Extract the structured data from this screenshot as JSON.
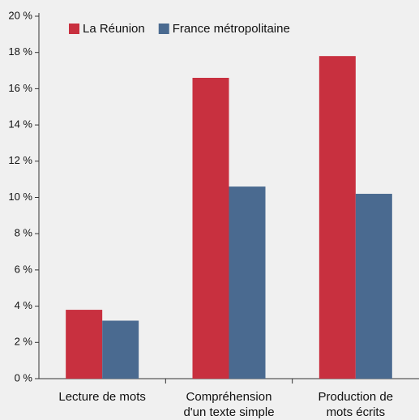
{
  "chart_data": {
    "type": "bar",
    "categories": [
      "Lecture de mots",
      "Compréhension\nd'un texte simple",
      "Production de\nmots écrits"
    ],
    "series": [
      {
        "name": "La Réunion",
        "color": "#c8303f",
        "values": [
          3.8,
          16.6,
          17.8
        ]
      },
      {
        "name": "France métropolitaine",
        "color": "#4a6a90",
        "values": [
          3.2,
          10.6,
          10.2
        ]
      }
    ],
    "ylim": [
      0,
      20
    ],
    "yticks": [
      {
        "value": 0,
        "label": "0 %"
      },
      {
        "value": 2,
        "label": "2 %"
      },
      {
        "value": 4,
        "label": "4 %"
      },
      {
        "value": 6,
        "label": "6 %"
      },
      {
        "value": 8,
        "label": "8 %"
      },
      {
        "value": 10,
        "label": "10 %"
      },
      {
        "value": 12,
        "label": "12 %"
      },
      {
        "value": 14,
        "label": "14 %"
      },
      {
        "value": 16,
        "label": "16 %"
      },
      {
        "value": 18,
        "label": "18 %"
      },
      {
        "value": 20,
        "label": "20 %"
      }
    ],
    "legend": "top-left"
  }
}
